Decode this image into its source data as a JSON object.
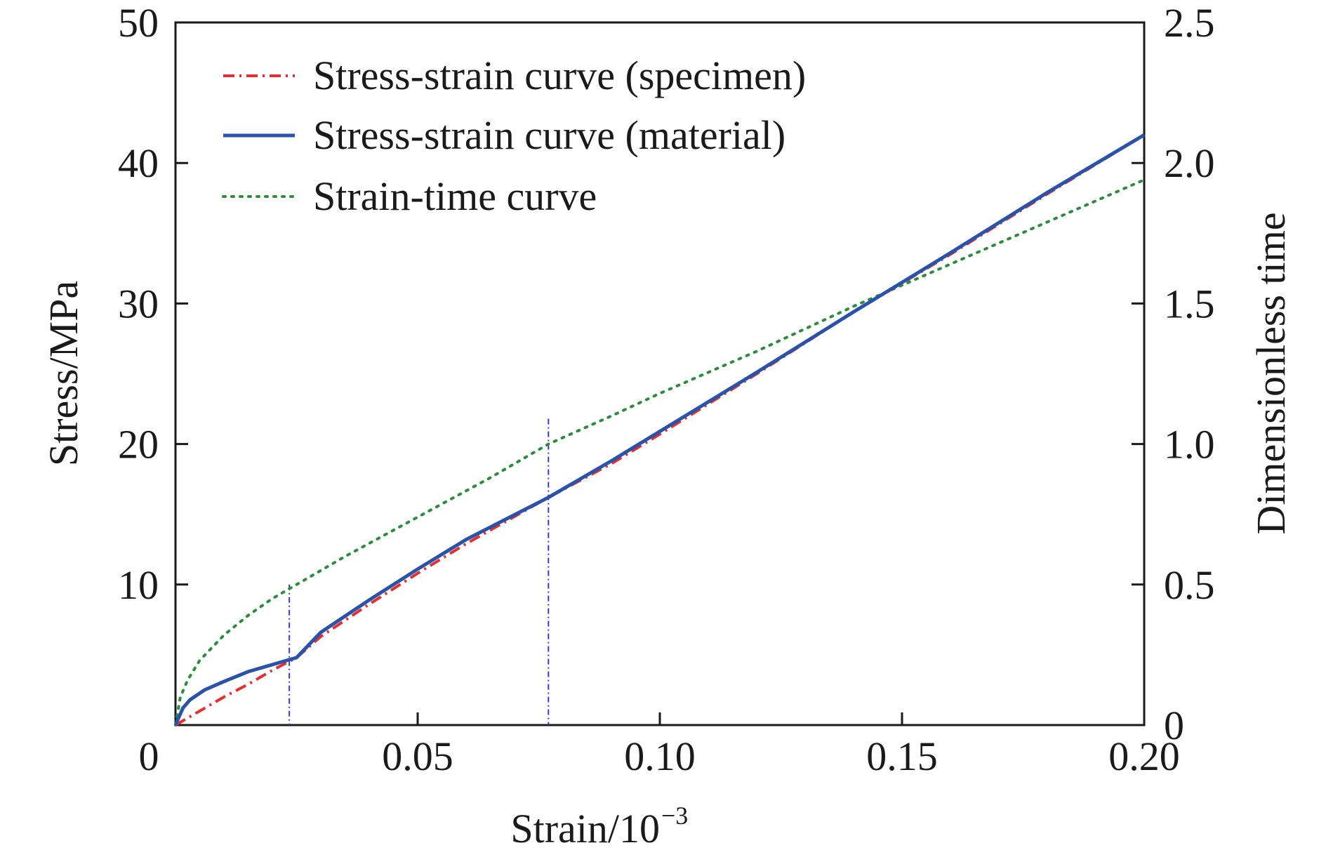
{
  "chart_data": {
    "type": "line",
    "title": "",
    "xlabel": "Strain/10",
    "xlabel_exponent": "−3",
    "ylabel": "Stress/MPa",
    "y2label": "Dimensionless time",
    "xlim": [
      0,
      0.2
    ],
    "ylim": [
      0,
      50
    ],
    "y2lim": [
      0,
      2.5
    ],
    "grid": false,
    "legend_position": "top-left",
    "x_ticks": [
      0.05,
      0.1,
      0.15,
      0.2
    ],
    "x_tick_labels": [
      "0.05",
      "0.10",
      "0.15",
      "0.20"
    ],
    "origin_label": "0",
    "y_ticks": [
      10,
      20,
      30,
      40,
      50
    ],
    "y_tick_labels": [
      "10",
      "20",
      "30",
      "40",
      "50"
    ],
    "y2_ticks": [
      0,
      0.5,
      1.0,
      1.5,
      2.0,
      2.5
    ],
    "y2_tick_labels": [
      "0",
      "0.5",
      "1.0",
      "1.5",
      "2.0",
      "2.5"
    ],
    "series": [
      {
        "name": "Stress-strain curve (specimen)",
        "axis": "left",
        "color": "#e03030",
        "style": "dashdot",
        "x": [
          0,
          0.005,
          0.01,
          0.015,
          0.02,
          0.025,
          0.03,
          0.04,
          0.05,
          0.06,
          0.077,
          0.09,
          0.1,
          0.12,
          0.14,
          0.16,
          0.18,
          0.2
        ],
        "y": [
          0,
          1.0,
          2.0,
          2.9,
          3.9,
          4.8,
          6.3,
          8.6,
          10.8,
          12.9,
          16.2,
          18.6,
          20.7,
          25.0,
          29.4,
          33.5,
          37.8,
          42.0
        ]
      },
      {
        "name": "Stress-strain curve (material)",
        "axis": "left",
        "color": "#2a52a8",
        "style": "solid",
        "x": [
          0,
          0.0015,
          0.003,
          0.006,
          0.01,
          0.015,
          0.02,
          0.025,
          0.03,
          0.04,
          0.05,
          0.06,
          0.077,
          0.09,
          0.1,
          0.12,
          0.14,
          0.16,
          0.18,
          0.2
        ],
        "y": [
          0,
          1.2,
          1.8,
          2.5,
          3.1,
          3.8,
          4.3,
          4.8,
          6.6,
          8.9,
          11.1,
          13.2,
          16.2,
          18.8,
          20.9,
          25.1,
          29.4,
          33.6,
          37.9,
          42.0
        ]
      },
      {
        "name": "Strain-time curve",
        "axis": "right",
        "color": "#2e8a3e",
        "style": "dotted",
        "x": [
          0,
          0.001,
          0.0025,
          0.005,
          0.01,
          0.015,
          0.02,
          0.025,
          0.035,
          0.05,
          0.065,
          0.077,
          0.09,
          0.1,
          0.12,
          0.14,
          0.16,
          0.18,
          0.2
        ],
        "y": [
          0,
          0.1,
          0.16,
          0.23,
          0.32,
          0.39,
          0.45,
          0.5,
          0.6,
          0.74,
          0.88,
          1.0,
          1.1,
          1.18,
          1.33,
          1.49,
          1.64,
          1.79,
          1.94
        ]
      }
    ],
    "reference_lines": [
      {
        "x": 0.0235,
        "y_top": 10,
        "color": "#3a3ad0"
      },
      {
        "x": 0.077,
        "y_top": 21.8,
        "color": "#3a3ad0"
      }
    ]
  }
}
